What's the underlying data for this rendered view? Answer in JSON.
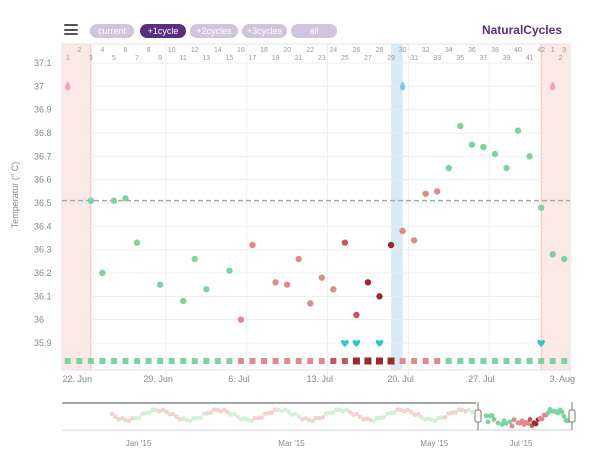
{
  "header": {
    "range_buttons": [
      {
        "label": "current",
        "active": false
      },
      {
        "label": "+1cycle",
        "active": true
      },
      {
        "label": "+2cycles",
        "active": false
      },
      {
        "label": "+3cycles",
        "active": false
      },
      {
        "label": "all",
        "active": false
      }
    ],
    "brand": "NaturalCycles"
  },
  "colors": {
    "accent": "#5b2d82",
    "green": "#7dd3a0",
    "red_light": "#e08a8a",
    "red_dark": "#9b2a2a",
    "period_band": "#fce8e4",
    "ovulation_band": "#d6ebf7",
    "teal": "#2fc7c7"
  },
  "icons": [
    "hamburger-menu-icon",
    "drop-icon",
    "heart-icon",
    "range-handle-icon"
  ],
  "chart_data": {
    "type": "scatter",
    "ylabel": "Temperatur (° C)",
    "ylim": [
      35.85,
      37.15
    ],
    "y_ticks": [
      "37.1",
      "37",
      "36.9",
      "36.8",
      "36.7",
      "36.6",
      "36.5",
      "36.4",
      "36.3",
      "36.2",
      "36.1",
      "36",
      "35.9"
    ],
    "y_tick_values": [
      37.1,
      37.0,
      36.9,
      36.8,
      36.7,
      36.6,
      36.5,
      36.4,
      36.3,
      36.2,
      36.1,
      36.0,
      35.9
    ],
    "coverline": 36.51,
    "day_range": [
      0,
      43
    ],
    "cycle_day_ticks": [
      {
        "label": "1",
        "row": 1,
        "day": 0
      },
      {
        "label": "2",
        "row": 0,
        "day": 1
      },
      {
        "label": "3",
        "row": 1,
        "day": 2
      },
      {
        "label": "4",
        "row": 0,
        "day": 3
      },
      {
        "label": "5",
        "row": 1,
        "day": 4
      },
      {
        "label": "6",
        "row": 0,
        "day": 5
      },
      {
        "label": "7",
        "row": 1,
        "day": 6
      },
      {
        "label": "8",
        "row": 0,
        "day": 7
      },
      {
        "label": "9",
        "row": 1,
        "day": 8
      },
      {
        "label": "10",
        "row": 0,
        "day": 9
      },
      {
        "label": "11",
        "row": 1,
        "day": 10
      },
      {
        "label": "12",
        "row": 0,
        "day": 11
      },
      {
        "label": "13",
        "row": 1,
        "day": 12
      },
      {
        "label": "14",
        "row": 0,
        "day": 13
      },
      {
        "label": "15",
        "row": 1,
        "day": 14
      },
      {
        "label": "16",
        "row": 0,
        "day": 15
      },
      {
        "label": "17",
        "row": 1,
        "day": 16
      },
      {
        "label": "18",
        "row": 0,
        "day": 17
      },
      {
        "label": "19",
        "row": 1,
        "day": 18
      },
      {
        "label": "20",
        "row": 0,
        "day": 19
      },
      {
        "label": "21",
        "row": 1,
        "day": 20
      },
      {
        "label": "22",
        "row": 0,
        "day": 21
      },
      {
        "label": "23",
        "row": 1,
        "day": 22
      },
      {
        "label": "24",
        "row": 0,
        "day": 23
      },
      {
        "label": "25",
        "row": 1,
        "day": 24
      },
      {
        "label": "26",
        "row": 0,
        "day": 25
      },
      {
        "label": "27",
        "row": 1,
        "day": 26
      },
      {
        "label": "28",
        "row": 0,
        "day": 27
      },
      {
        "label": "29",
        "row": 1,
        "day": 28
      },
      {
        "label": "30",
        "row": 0,
        "day": 29
      },
      {
        "label": "31",
        "row": 1,
        "day": 30
      },
      {
        "label": "32",
        "row": 0,
        "day": 31
      },
      {
        "label": "33",
        "row": 1,
        "day": 32
      },
      {
        "label": "34",
        "row": 0,
        "day": 33
      },
      {
        "label": "35",
        "row": 1,
        "day": 34
      },
      {
        "label": "36",
        "row": 0,
        "day": 35
      },
      {
        "label": "37",
        "row": 1,
        "day": 36
      },
      {
        "label": "38",
        "row": 0,
        "day": 37
      },
      {
        "label": "39",
        "row": 1,
        "day": 38
      },
      {
        "label": "40",
        "row": 0,
        "day": 39
      },
      {
        "label": "41",
        "row": 1,
        "day": 40
      },
      {
        "label": "42",
        "row": 0,
        "day": 41
      },
      {
        "label": "1",
        "row": 0,
        "day": 42
      },
      {
        "label": "2",
        "row": 1,
        "day": 42.7
      },
      {
        "label": "3",
        "row": 0,
        "day": 43
      }
    ],
    "date_ticks": [
      {
        "label": "22. Jun",
        "day": 1
      },
      {
        "label": "29. Jun",
        "day": 8
      },
      {
        "label": "6. Jul",
        "day": 15
      },
      {
        "label": "13. Jul",
        "day": 22
      },
      {
        "label": "20. Jul",
        "day": 29
      },
      {
        "label": "27. Jul",
        "day": 36
      },
      {
        "label": "3. Aug",
        "day": 43
      }
    ],
    "period_bands": [
      [
        0,
        2.5
      ],
      [
        41.5,
        44
      ]
    ],
    "ovulation_band": [
      28.5,
      29.5
    ],
    "points": [
      {
        "day": 2,
        "temp": 36.51,
        "color": "green"
      },
      {
        "day": 3,
        "temp": 36.2,
        "color": "green"
      },
      {
        "day": 4,
        "temp": 36.51,
        "color": "green"
      },
      {
        "day": 5,
        "temp": 36.52,
        "color": "green"
      },
      {
        "day": 6,
        "temp": 36.33,
        "color": "green"
      },
      {
        "day": 8,
        "temp": 36.15,
        "color": "green"
      },
      {
        "day": 10,
        "temp": 36.08,
        "color": "green"
      },
      {
        "day": 11,
        "temp": 36.26,
        "color": "green"
      },
      {
        "day": 12,
        "temp": 36.13,
        "color": "green"
      },
      {
        "day": 14,
        "temp": 36.21,
        "color": "green"
      },
      {
        "day": 15,
        "temp": 36.0,
        "color": "red_light"
      },
      {
        "day": 16,
        "temp": 36.32,
        "color": "red_light"
      },
      {
        "day": 18,
        "temp": 36.16,
        "color": "red_light"
      },
      {
        "day": 19,
        "temp": 36.15,
        "color": "red_light"
      },
      {
        "day": 20,
        "temp": 36.26,
        "color": "red_light"
      },
      {
        "day": 21,
        "temp": 36.07,
        "color": "red_light"
      },
      {
        "day": 22,
        "temp": 36.18,
        "color": "red_light"
      },
      {
        "day": 23,
        "temp": 36.13,
        "color": "red_light"
      },
      {
        "day": 24,
        "temp": 36.33,
        "color": "red_mid"
      },
      {
        "day": 25,
        "temp": 36.02,
        "color": "red_mid"
      },
      {
        "day": 26,
        "temp": 36.16,
        "color": "red_dark"
      },
      {
        "day": 27,
        "temp": 36.1,
        "color": "red_dark"
      },
      {
        "day": 28,
        "temp": 36.32,
        "color": "red_dark"
      },
      {
        "day": 29,
        "temp": 36.38,
        "color": "red_light"
      },
      {
        "day": 30,
        "temp": 36.34,
        "color": "red_light"
      },
      {
        "day": 31,
        "temp": 36.54,
        "color": "red_light"
      },
      {
        "day": 32,
        "temp": 36.55,
        "color": "red_light"
      },
      {
        "day": 33,
        "temp": 36.65,
        "color": "green"
      },
      {
        "day": 34,
        "temp": 36.83,
        "color": "green"
      },
      {
        "day": 35,
        "temp": 36.75,
        "color": "green"
      },
      {
        "day": 36,
        "temp": 36.74,
        "color": "green"
      },
      {
        "day": 37,
        "temp": 36.71,
        "color": "green"
      },
      {
        "day": 38,
        "temp": 36.65,
        "color": "green"
      },
      {
        "day": 39,
        "temp": 36.81,
        "color": "green"
      },
      {
        "day": 40,
        "temp": 36.7,
        "color": "green"
      },
      {
        "day": 41,
        "temp": 36.48,
        "color": "green"
      },
      {
        "day": 42,
        "temp": 36.28,
        "color": "green"
      },
      {
        "day": 43,
        "temp": 36.26,
        "color": "green"
      }
    ],
    "hearts": [
      24,
      25,
      27,
      41
    ],
    "drops": [
      0,
      29,
      42
    ],
    "day_squares": [
      "green",
      "green",
      "green",
      "green",
      "green",
      "green",
      "green",
      "green",
      "green",
      "green",
      "green",
      "green",
      "green",
      "green",
      "green",
      "red_light",
      "red_light",
      "red_light",
      "red_light",
      "red_light",
      "red_light",
      "red_light",
      "red_light",
      "red_mid",
      "red_mid",
      "red_dark",
      "red_dark",
      "red_dark",
      "red_dark",
      "red_light",
      "red_light",
      "red_light",
      "red_light",
      "green",
      "green",
      "green",
      "green",
      "green",
      "green",
      "green",
      "green",
      "green",
      "green",
      "green"
    ]
  },
  "overview": {
    "month_labels": [
      {
        "label": "Jan '15",
        "pos": 0.15
      },
      {
        "label": "Mar '15",
        "pos": 0.45
      },
      {
        "label": "May '15",
        "pos": 0.73
      },
      {
        "label": "Jul '15",
        "pos": 0.9
      }
    ]
  }
}
